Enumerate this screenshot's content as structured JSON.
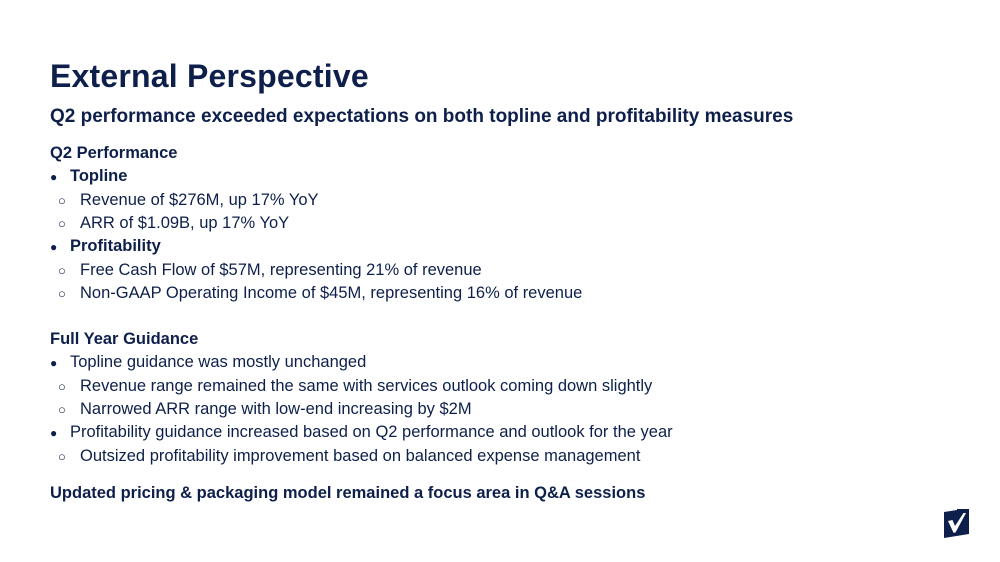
{
  "slide": {
    "title": "External Perspective",
    "subtitle": "Q2 performance exceeded expectations on both topline and profitability measures"
  },
  "q2_performance": {
    "heading": "Q2 Performance",
    "groups": [
      {
        "label": "Topline",
        "items": [
          "Revenue of $276M, up 17% YoY",
          "ARR of $1.09B, up 17% YoY"
        ]
      },
      {
        "label": "Profitability",
        "items": [
          "Free Cash Flow of $57M, representing 21% of revenue",
          "Non-GAAP Operating Income of $45M, representing 16% of revenue"
        ]
      }
    ]
  },
  "guidance": {
    "heading": "Full Year Guidance",
    "groups": [
      {
        "label": "Topline guidance was mostly unchanged",
        "items": [
          "Revenue range remained the same with services outlook coming down slightly",
          "Narrowed ARR range with low-end increasing by $2M"
        ]
      },
      {
        "label": "Profitability guidance increased based on Q2 performance and outlook for the year",
        "items": [
          "Outsized profitability improvement based on balanced expense management"
        ]
      }
    ]
  },
  "closing": "Updated pricing & packaging model remained a focus area in Q&A sessions",
  "bullets": {
    "level1": "●",
    "level2": "○"
  },
  "icons": {
    "logo": "checkmark-logo-icon"
  },
  "colors": {
    "text": "#0d1f4a",
    "logo": "#0d1f4a",
    "background": "#ffffff"
  }
}
